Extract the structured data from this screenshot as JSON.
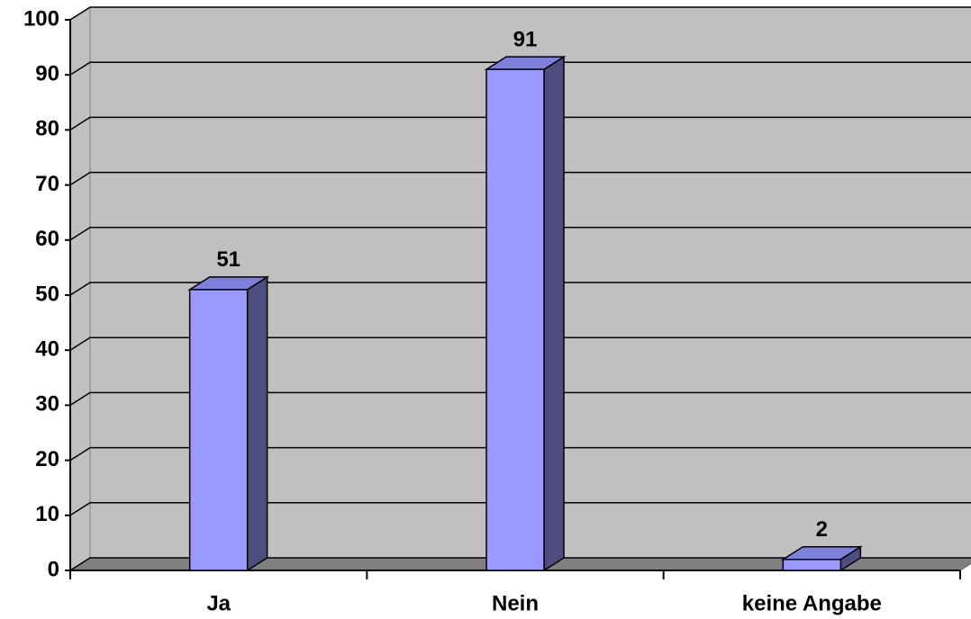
{
  "chart_data": {
    "type": "bar3d",
    "categories": [
      "Ja",
      "Nein",
      "keine Angabe"
    ],
    "values": [
      51,
      91,
      2
    ],
    "color": "#9999ff",
    "ylim": [
      0,
      100
    ],
    "yticks": [
      0,
      10,
      20,
      30,
      40,
      50,
      60,
      70,
      80,
      90,
      100
    ],
    "grid": true
  }
}
